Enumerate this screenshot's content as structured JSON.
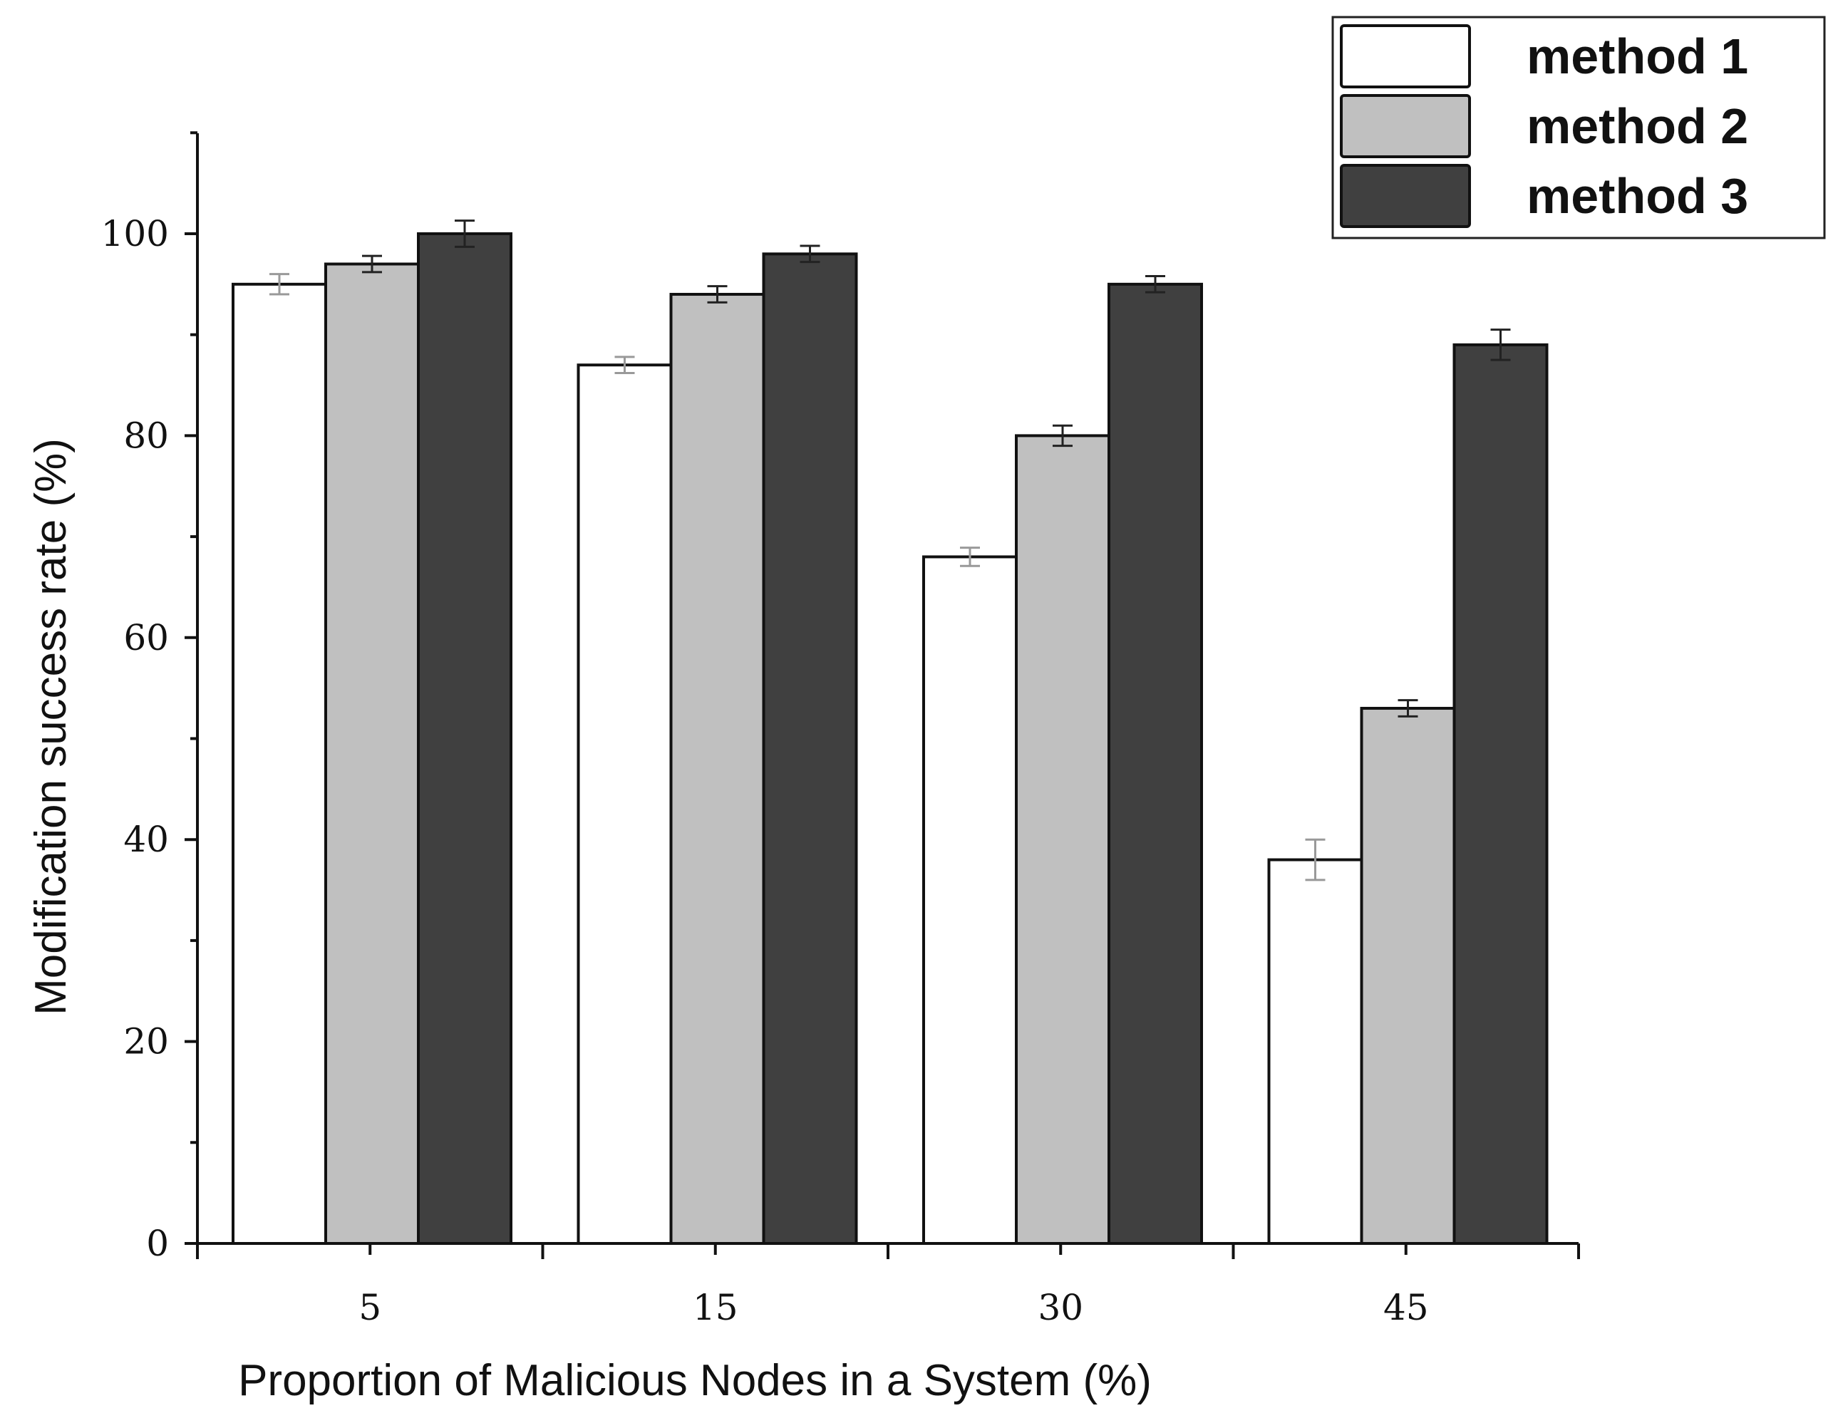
{
  "chart_data": {
    "type": "bar",
    "xlabel": "Proportion of Malicious Nodes in a System (%)",
    "ylabel": "Modification success rate (%)",
    "categories": [
      "5",
      "15",
      "30",
      "45"
    ],
    "ylim": [
      0,
      110
    ],
    "yticks": [
      "0",
      "20",
      "40",
      "60",
      "80",
      "100"
    ],
    "ytick_values": [
      0,
      20,
      40,
      60,
      80,
      100
    ],
    "series": [
      {
        "name": "method 1",
        "color": "#ffffff",
        "values": [
          95,
          87,
          68,
          38
        ],
        "errors": [
          1.0,
          0.8,
          0.9,
          2.0
        ]
      },
      {
        "name": "method 2",
        "color": "#c0c0c0",
        "values": [
          97,
          94,
          80,
          53
        ],
        "errors": [
          0.8,
          0.8,
          1.0,
          0.8
        ]
      },
      {
        "name": "method 3",
        "color": "#404040",
        "values": [
          100,
          98,
          95,
          89
        ],
        "errors": [
          1.3,
          0.8,
          0.8,
          1.5
        ]
      }
    ],
    "legend_position": "top-right",
    "grid": false
  }
}
